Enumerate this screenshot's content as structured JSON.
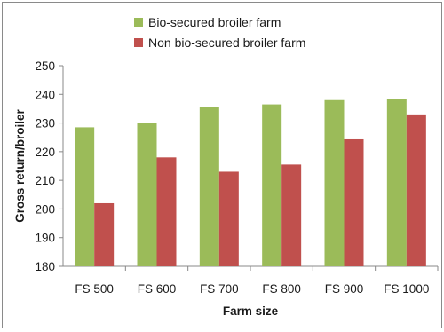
{
  "chart_data": {
    "type": "bar",
    "title": "",
    "xlabel": "Farm size",
    "ylabel": "Gross return/broiler",
    "categories": [
      "FS 500",
      "FS 600",
      "FS 700",
      "FS 800",
      "FS 900",
      "FS 1000"
    ],
    "series": [
      {
        "name": "Bio-secured broiler farm",
        "color": "#9bbb59",
        "values": [
          228.5,
          230,
          235.5,
          236.5,
          238,
          238.3
        ]
      },
      {
        "name": "Non bio-secured broiler farm",
        "color": "#c0504d",
        "values": [
          202,
          218,
          213,
          215.5,
          224.3,
          233
        ]
      }
    ],
    "ylim": [
      180,
      250
    ],
    "yticks": [
      "180",
      "190",
      "200",
      "210",
      "220",
      "230",
      "240",
      "250"
    ],
    "grid": false,
    "legend_position": "top"
  }
}
